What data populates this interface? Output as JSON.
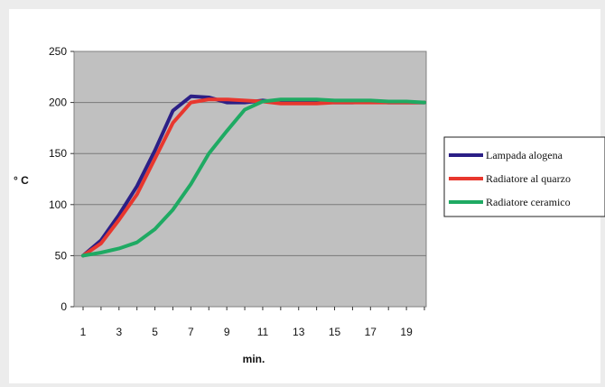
{
  "chart_data": {
    "type": "line",
    "title": "",
    "xlabel": "min.",
    "ylabel": "° C",
    "x": [
      1,
      2,
      3,
      4,
      5,
      6,
      7,
      8,
      9,
      10,
      11,
      12,
      13,
      14,
      15,
      16,
      17,
      18,
      19,
      20
    ],
    "x_tick_labels": [
      "1",
      "3",
      "5",
      "7",
      "9",
      "11",
      "13",
      "15",
      "17",
      "19"
    ],
    "y_tick_labels": [
      "0",
      "50",
      "100",
      "150",
      "200",
      "250"
    ],
    "ylim": [
      0,
      250
    ],
    "grid": "horizontal",
    "legend_position": "right",
    "plot_background": "#c0c0c0",
    "series": [
      {
        "name": "Lampada alogena",
        "color": "#2b1f86",
        "values": [
          50,
          65,
          90,
          118,
          153,
          192,
          206,
          205,
          200,
          200,
          202,
          200,
          200,
          201,
          200,
          200,
          201,
          200,
          200,
          200
        ]
      },
      {
        "name": "Radiatore al quarzo",
        "color": "#e8372e",
        "values": [
          50,
          62,
          85,
          110,
          145,
          180,
          200,
          203,
          203,
          202,
          201,
          199,
          199,
          199,
          200,
          200,
          200,
          200,
          200,
          200
        ]
      },
      {
        "name": "Radiatore ceramico",
        "color": "#1faa63",
        "values": [
          50,
          53,
          57,
          63,
          76,
          95,
          120,
          150,
          172,
          193,
          201,
          203,
          203,
          203,
          202,
          202,
          202,
          201,
          201,
          200
        ]
      }
    ]
  }
}
